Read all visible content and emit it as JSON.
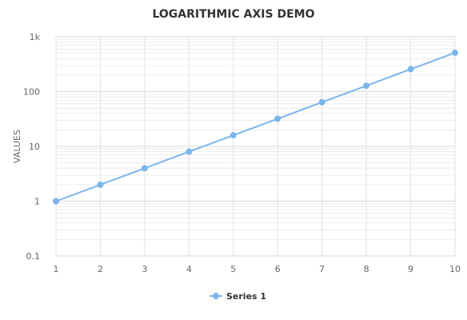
{
  "chart_data": {
    "type": "line",
    "title": "LOGARITHMIC AXIS DEMO",
    "xlabel": "",
    "ylabel": "VALUES",
    "y_scale": "log",
    "ylim": [
      0.1,
      1000
    ],
    "xlim": [
      1,
      10
    ],
    "x": [
      1,
      2,
      3,
      4,
      5,
      6,
      7,
      8,
      9,
      10
    ],
    "x_ticks": [
      "1",
      "2",
      "3",
      "4",
      "5",
      "6",
      "7",
      "8",
      "9",
      "10"
    ],
    "y_ticks": [
      {
        "value": 0.1,
        "label": "0.1"
      },
      {
        "value": 1,
        "label": "1"
      },
      {
        "value": 10,
        "label": "10"
      },
      {
        "value": 100,
        "label": "100"
      },
      {
        "value": 1000,
        "label": "1k"
      }
    ],
    "series": [
      {
        "name": "Series 1",
        "color": "#7cb5ec",
        "values": [
          1,
          2,
          4,
          8,
          16,
          32,
          64,
          128,
          256,
          512
        ]
      }
    ],
    "grid": true,
    "legend_position": "bottom-center"
  }
}
